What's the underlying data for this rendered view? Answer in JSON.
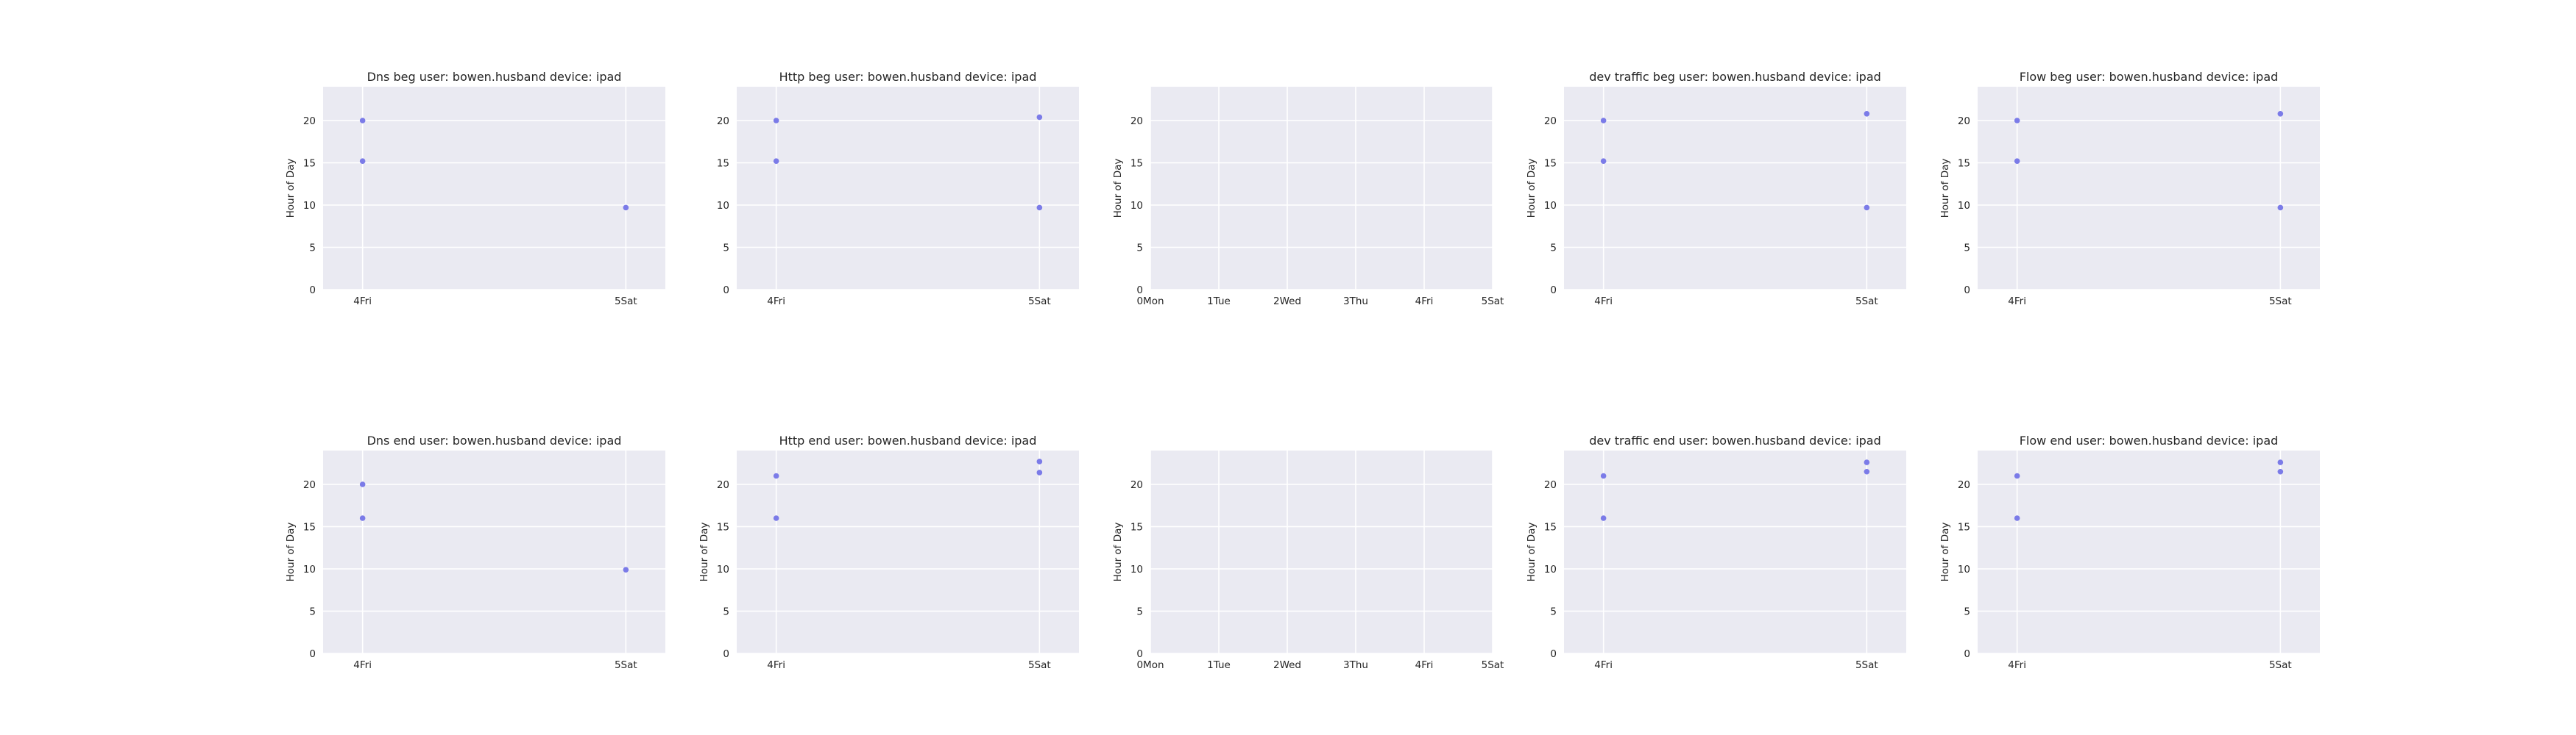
{
  "chart_data": [
    {
      "type": "scatter",
      "title": "Dns beg user: bowen.husband device: ipad",
      "ylabel": "Hour of Day",
      "x_ticks": [
        "4Fri",
        "5Sat"
      ],
      "xlim": [
        3.85,
        5.15
      ],
      "ylim": [
        0,
        24
      ],
      "y_ticks": [
        0,
        5,
        10,
        15,
        20
      ],
      "grid": true,
      "points": [
        {
          "x": 4,
          "y": 20
        },
        {
          "x": 4,
          "y": 15.2
        },
        {
          "x": 5,
          "y": 9.7
        }
      ]
    },
    {
      "type": "scatter",
      "title": "Http beg user: bowen.husband device: ipad",
      "ylabel": "",
      "x_ticks": [
        "4Fri",
        "5Sat"
      ],
      "xlim": [
        3.85,
        5.15
      ],
      "ylim": [
        0,
        24
      ],
      "y_ticks": [
        0,
        5,
        10,
        15,
        20
      ],
      "grid": true,
      "points": [
        {
          "x": 4,
          "y": 20
        },
        {
          "x": 4,
          "y": 15.2
        },
        {
          "x": 5,
          "y": 20.4
        },
        {
          "x": 5,
          "y": 9.7
        }
      ]
    },
    {
      "type": "scatter",
      "title": "",
      "ylabel": "Hour of Day",
      "x_ticks": [
        "0Mon",
        "1Tue",
        "2Wed",
        "3Thu",
        "4Fri",
        "5Sat"
      ],
      "x_tick_values": [
        0,
        1,
        2,
        3,
        4,
        5
      ],
      "xlim": [
        0,
        5
      ],
      "ylim": [
        0,
        24
      ],
      "y_ticks": [
        0,
        5,
        10,
        15,
        20
      ],
      "grid": true,
      "points": []
    },
    {
      "type": "scatter",
      "title": "dev traffic beg user: bowen.husband device: ipad",
      "ylabel": "Hour of Day",
      "x_ticks": [
        "4Fri",
        "5Sat"
      ],
      "xlim": [
        3.85,
        5.15
      ],
      "ylim": [
        0,
        24
      ],
      "y_ticks": [
        0,
        5,
        10,
        15,
        20
      ],
      "grid": true,
      "points": [
        {
          "x": 4,
          "y": 20
        },
        {
          "x": 4,
          "y": 15.2
        },
        {
          "x": 5,
          "y": 20.8
        },
        {
          "x": 5,
          "y": 9.7
        }
      ]
    },
    {
      "type": "scatter",
      "title": "Flow beg user: bowen.husband device: ipad",
      "ylabel": "Hour of Day",
      "x_ticks": [
        "4Fri",
        "5Sat"
      ],
      "xlim": [
        3.85,
        5.15
      ],
      "ylim": [
        0,
        24
      ],
      "y_ticks": [
        0,
        5,
        10,
        15,
        20
      ],
      "grid": true,
      "points": [
        {
          "x": 4,
          "y": 20
        },
        {
          "x": 4,
          "y": 15.2
        },
        {
          "x": 5,
          "y": 20.8
        },
        {
          "x": 5,
          "y": 9.7
        }
      ]
    },
    {
      "type": "scatter",
      "title": "Dns end user: bowen.husband device: ipad",
      "ylabel": "Hour of Day",
      "x_ticks": [
        "4Fri",
        "5Sat"
      ],
      "xlim": [
        3.85,
        5.15
      ],
      "ylim": [
        0,
        24
      ],
      "y_ticks": [
        0,
        5,
        10,
        15,
        20
      ],
      "grid": true,
      "points": [
        {
          "x": 4,
          "y": 20
        },
        {
          "x": 4,
          "y": 16
        },
        {
          "x": 5,
          "y": 9.9
        }
      ]
    },
    {
      "type": "scatter",
      "title": "Http end user: bowen.husband device: ipad",
      "ylabel": "Hour of Day",
      "x_ticks": [
        "4Fri",
        "5Sat"
      ],
      "xlim": [
        3.85,
        5.15
      ],
      "ylim": [
        0,
        24
      ],
      "y_ticks": [
        0,
        5,
        10,
        15,
        20
      ],
      "grid": true,
      "points": [
        {
          "x": 4,
          "y": 21
        },
        {
          "x": 4,
          "y": 16
        },
        {
          "x": 5,
          "y": 22.7
        },
        {
          "x": 5,
          "y": 21.4
        }
      ]
    },
    {
      "type": "scatter",
      "title": "",
      "ylabel": "Hour of Day",
      "x_ticks": [
        "0Mon",
        "1Tue",
        "2Wed",
        "3Thu",
        "4Fri",
        "5Sat"
      ],
      "x_tick_values": [
        0,
        1,
        2,
        3,
        4,
        5
      ],
      "xlim": [
        0,
        5
      ],
      "ylim": [
        0,
        24
      ],
      "y_ticks": [
        0,
        5,
        10,
        15,
        20
      ],
      "grid": true,
      "points": []
    },
    {
      "type": "scatter",
      "title": "dev traffic end user: bowen.husband device: ipad",
      "ylabel": "Hour of Day",
      "x_ticks": [
        "4Fri",
        "5Sat"
      ],
      "xlim": [
        3.85,
        5.15
      ],
      "ylim": [
        0,
        24
      ],
      "y_ticks": [
        0,
        5,
        10,
        15,
        20
      ],
      "grid": true,
      "points": [
        {
          "x": 4,
          "y": 21
        },
        {
          "x": 4,
          "y": 16
        },
        {
          "x": 5,
          "y": 22.6
        },
        {
          "x": 5,
          "y": 21.5
        }
      ]
    },
    {
      "type": "scatter",
      "title": "Flow end user: bowen.husband device: ipad",
      "ylabel": "Hour of Day",
      "x_ticks": [
        "4Fri",
        "5Sat"
      ],
      "xlim": [
        3.85,
        5.15
      ],
      "ylim": [
        0,
        24
      ],
      "y_ticks": [
        0,
        5,
        10,
        15,
        20
      ],
      "grid": true,
      "points": [
        {
          "x": 4,
          "y": 21
        },
        {
          "x": 4,
          "y": 16
        },
        {
          "x": 5,
          "y": 22.6
        },
        {
          "x": 5,
          "y": 21.5
        }
      ]
    }
  ]
}
